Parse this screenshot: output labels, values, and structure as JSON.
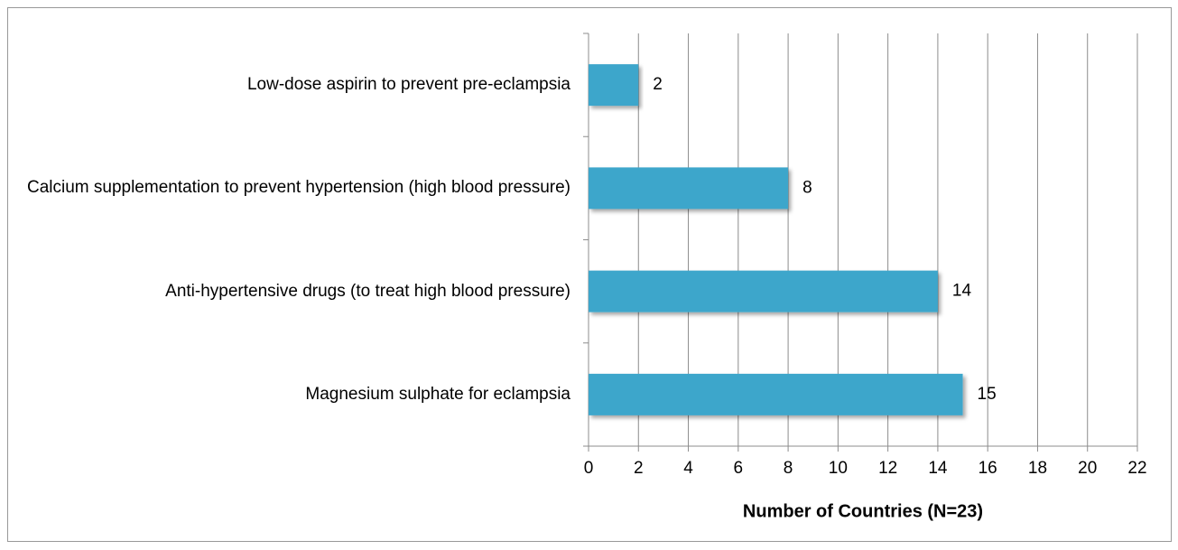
{
  "chart_data": {
    "type": "barh",
    "categories": [
      "Low-dose aspirin to prevent pre-eclampsia",
      "Calcium supplementation to prevent hypertension (high blood pressure)",
      "Anti-hypertensive drugs (to treat high blood pressure)",
      "Magnesium sulphate for eclampsia"
    ],
    "values": [
      2,
      8,
      14,
      15
    ],
    "color": "#3ea6cb",
    "xlabel": "Number of Countries (N=23)",
    "xlim": [
      0,
      22
    ],
    "xticks": [
      0,
      2,
      4,
      6,
      8,
      10,
      12,
      14,
      16,
      18,
      20,
      22
    ],
    "grid": true
  }
}
